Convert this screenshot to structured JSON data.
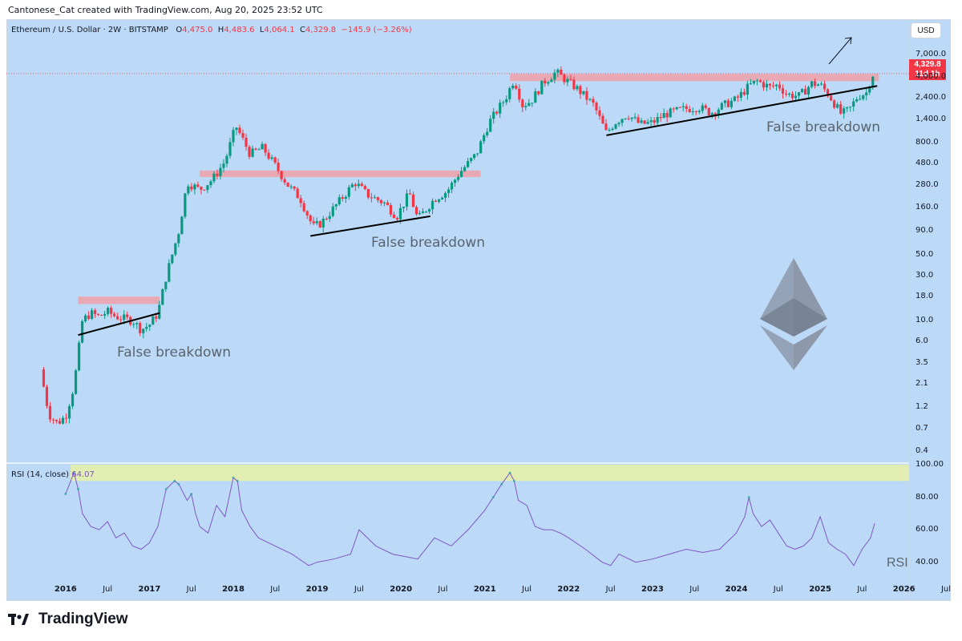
{
  "attribution": "Cantonese_Cat created with TradingView.com, Aug 20, 2025 23:52 UTC",
  "header": {
    "symbol": "Ethereum / U.S. Dollar · 2W · BITSTAMP",
    "o_label": "O",
    "o_value": "4,475.0",
    "h_label": "H",
    "h_value": "4,483.6",
    "l_label": "L",
    "l_value": "4,064.1",
    "c_label": "C",
    "c_value": "4,329.8",
    "change": "−145.9 (−3.26%)"
  },
  "currency_button": "USD",
  "price_tag": {
    "price": "4,329.8",
    "countdown": "11d 1h"
  },
  "rsi_title": {
    "label": "RSI (14, close)",
    "value": "64.07"
  },
  "rsi_watermark": "RSI",
  "annotations": [
    "False breakdown",
    "False breakdown",
    "False breakdown"
  ],
  "footer_brand": "TradingView",
  "colors": {
    "background": "#bcdaf7",
    "up": "#089981",
    "down": "#f23645",
    "resistance": "#f0a0a8",
    "rsi_line": "#7e57c2",
    "rsi_zone": "#e6f0a8",
    "eth_logo": "#8a95a6"
  },
  "icons": {
    "logo": "ethereum-logo-icon",
    "brand": "tradingview-logo-icon",
    "arrow": "breakout-arrow-icon"
  },
  "chart_data": [
    {
      "type": "candlestick",
      "title": "Ethereum / U.S. Dollar · 2W · BITSTAMP",
      "y_scale": "log",
      "y_ticks": [
        "7,000.0",
        "4,000.0",
        "2,400.0",
        "1,400.0",
        "800.0",
        "480.0",
        "280.0",
        "160.0",
        "90.0",
        "50.0",
        "30.0",
        "18.0",
        "10.0",
        "6.0",
        "3.5",
        "2.1",
        "1.2",
        "0.7",
        "0.4"
      ],
      "x_ticks": [
        "2016",
        "Jul",
        "2017",
        "Jul",
        "2018",
        "Jul",
        "2019",
        "Jul",
        "2020",
        "Jul",
        "2021",
        "Jul",
        "2022",
        "Jul",
        "2023",
        "Jul",
        "2024",
        "Jul",
        "2025",
        "Jul",
        "2026",
        "Jul"
      ],
      "x_years": [
        "2016",
        "2017",
        "2018",
        "2019",
        "2020",
        "2021",
        "2022",
        "2023",
        "2024",
        "2025",
        "2026"
      ],
      "price_path": [
        [
          2015.7,
          3.0
        ],
        [
          2015.8,
          1.0
        ],
        [
          2015.9,
          0.8
        ],
        [
          2016.0,
          0.95
        ],
        [
          2016.1,
          2.0
        ],
        [
          2016.2,
          10.0
        ],
        [
          2016.3,
          12.0
        ],
        [
          2016.4,
          11.0
        ],
        [
          2016.5,
          12.5
        ],
        [
          2016.6,
          11.0
        ],
        [
          2016.8,
          10.0
        ],
        [
          2016.9,
          8.0
        ],
        [
          2017.0,
          9.0
        ],
        [
          2017.1,
          12.0
        ],
        [
          2017.2,
          30.0
        ],
        [
          2017.35,
          90.0
        ],
        [
          2017.45,
          300.0
        ],
        [
          2017.6,
          250.0
        ],
        [
          2017.75,
          320.0
        ],
        [
          2017.9,
          500.0
        ],
        [
          2018.03,
          1200.0
        ],
        [
          2018.2,
          600.0
        ],
        [
          2018.35,
          700.0
        ],
        [
          2018.5,
          450.0
        ],
        [
          2018.65,
          280.0
        ],
        [
          2018.8,
          200.0
        ],
        [
          2018.95,
          100.0
        ],
        [
          2019.05,
          110.0
        ],
        [
          2019.2,
          160.0
        ],
        [
          2019.45,
          300.0
        ],
        [
          2019.6,
          220.0
        ],
        [
          2019.8,
          180.0
        ],
        [
          2019.95,
          130.0
        ],
        [
          2020.1,
          230.0
        ],
        [
          2020.2,
          120.0
        ],
        [
          2020.4,
          200.0
        ],
        [
          2020.55,
          240.0
        ],
        [
          2020.7,
          380.0
        ],
        [
          2020.9,
          600.0
        ],
        [
          2021.05,
          1300.0
        ],
        [
          2021.25,
          2400.0
        ],
        [
          2021.35,
          3800.0
        ],
        [
          2021.45,
          2000.0
        ],
        [
          2021.55,
          2200.0
        ],
        [
          2021.7,
          3500.0
        ],
        [
          2021.85,
          4500.0
        ],
        [
          2021.95,
          3800.0
        ],
        [
          2022.1,
          3000.0
        ],
        [
          2022.3,
          2000.0
        ],
        [
          2022.45,
          1000.0
        ],
        [
          2022.55,
          1300.0
        ],
        [
          2022.7,
          1600.0
        ],
        [
          2022.85,
          1250.0
        ],
        [
          2023.0,
          1300.0
        ],
        [
          2023.15,
          1600.0
        ],
        [
          2023.35,
          1800.0
        ],
        [
          2023.55,
          1900.0
        ],
        [
          2023.7,
          1650.0
        ],
        [
          2023.85,
          2000.0
        ],
        [
          2024.0,
          2300.0
        ],
        [
          2024.15,
          3200.0
        ],
        [
          2024.25,
          3600.0
        ],
        [
          2024.4,
          3100.0
        ],
        [
          2024.5,
          3300.0
        ],
        [
          2024.6,
          2600.0
        ],
        [
          2024.75,
          2500.0
        ],
        [
          2024.9,
          3400.0
        ],
        [
          2025.0,
          3300.0
        ],
        [
          2025.1,
          2600.0
        ],
        [
          2025.25,
          1600.0
        ],
        [
          2025.35,
          1800.0
        ],
        [
          2025.45,
          2500.0
        ],
        [
          2025.55,
          2700.0
        ],
        [
          2025.6,
          3700.0
        ],
        [
          2025.63,
          4300.0
        ]
      ],
      "resistance_zones": [
        {
          "x": [
            2016.15,
            2017.12
          ],
          "y": [
            15.0,
            18.0
          ]
        },
        {
          "x": [
            2017.6,
            2020.95
          ],
          "y": [
            340.0,
            400.0
          ]
        },
        {
          "x": [
            2021.3,
            2025.7
          ],
          "y": [
            3600.0,
            4300.0
          ]
        }
      ],
      "trendlines": [
        {
          "from": [
            2016.15,
            7.0
          ],
          "to": [
            2017.12,
            12.0
          ]
        },
        {
          "from": [
            2018.92,
            80.0
          ],
          "to": [
            2020.35,
            130.0
          ]
        },
        {
          "from": [
            2022.45,
            950.0
          ],
          "to": [
            2025.68,
            3200.0
          ]
        }
      ],
      "last_price": 4329.8
    },
    {
      "type": "line",
      "title": "RSI (14, close)",
      "y_ticks": [
        "100.00",
        "80.00",
        "60.00",
        "40.00"
      ],
      "y_range": [
        30,
        100
      ],
      "overbought_zone": [
        90,
        100
      ],
      "x": [
        2016.0,
        2016.1,
        2016.15,
        2016.2,
        2016.3,
        2016.4,
        2016.5,
        2016.6,
        2016.7,
        2016.8,
        2016.9,
        2017.0,
        2017.1,
        2017.2,
        2017.3,
        2017.35,
        2017.45,
        2017.5,
        2017.55,
        2017.6,
        2017.7,
        2017.8,
        2017.9,
        2018.0,
        2018.05,
        2018.1,
        2018.2,
        2018.3,
        2018.5,
        2018.7,
        2018.9,
        2019.0,
        2019.2,
        2019.4,
        2019.5,
        2019.7,
        2019.9,
        2020.0,
        2020.2,
        2020.4,
        2020.6,
        2020.8,
        2021.0,
        2021.1,
        2021.2,
        2021.3,
        2021.35,
        2021.4,
        2021.5,
        2021.6,
        2021.7,
        2021.8,
        2021.9,
        2022.0,
        2022.2,
        2022.4,
        2022.5,
        2022.6,
        2022.8,
        2023.0,
        2023.2,
        2023.4,
        2023.6,
        2023.8,
        2024.0,
        2024.1,
        2024.15,
        2024.2,
        2024.3,
        2024.4,
        2024.5,
        2024.6,
        2024.7,
        2024.8,
        2024.9,
        2025.0,
        2025.1,
        2025.2,
        2025.3,
        2025.4,
        2025.5,
        2025.6,
        2025.65
      ],
      "values": [
        82,
        95,
        85,
        70,
        62,
        60,
        65,
        55,
        58,
        50,
        48,
        52,
        62,
        85,
        90,
        88,
        78,
        82,
        70,
        62,
        58,
        75,
        68,
        92,
        90,
        72,
        62,
        55,
        50,
        45,
        38,
        40,
        42,
        45,
        60,
        50,
        45,
        44,
        42,
        55,
        50,
        60,
        72,
        80,
        88,
        95,
        90,
        78,
        75,
        62,
        60,
        60,
        58,
        55,
        48,
        40,
        38,
        45,
        40,
        42,
        45,
        48,
        46,
        48,
        58,
        68,
        80,
        70,
        62,
        66,
        58,
        50,
        48,
        50,
        55,
        68,
        52,
        48,
        45,
        38,
        48,
        55,
        64
      ]
    }
  ]
}
